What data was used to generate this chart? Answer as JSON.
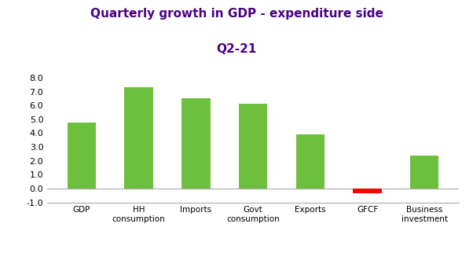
{
  "title_line1": "Quarterly growth in GDP - expenditure side",
  "title_line2": "Q2-21",
  "categories": [
    "GDP",
    "HH\nconsumption",
    "Imports",
    "Govt\nconsumption",
    "Exports",
    "GFCF",
    "Business\ninvestment"
  ],
  "values": [
    4.75,
    7.3,
    6.5,
    6.1,
    3.9,
    -0.35,
    2.4
  ],
  "bar_colors": [
    "#6dbf3e",
    "#6dbf3e",
    "#6dbf3e",
    "#6dbf3e",
    "#6dbf3e",
    "#ff0000",
    "#6dbf3e"
  ],
  "ylim": [
    -1.0,
    8.5
  ],
  "yticks": [
    -1.0,
    0.0,
    1.0,
    2.0,
    3.0,
    4.0,
    5.0,
    6.0,
    7.0,
    8.0
  ],
  "title_color": "#4b0082",
  "title_fontsize": 11,
  "subtitle_fontsize": 11,
  "bar_width": 0.5,
  "figsize": [
    6.02,
    3.22
  ],
  "dpi": 100
}
